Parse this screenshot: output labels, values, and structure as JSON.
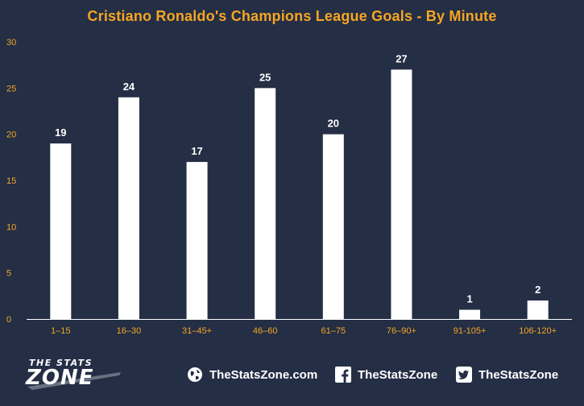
{
  "chart_data": {
    "type": "bar",
    "title": "Cristiano Ronaldo's Champions League Goals - By Minute",
    "categories": [
      "1–15",
      "16–30",
      "31–45+",
      "46–60",
      "61–75",
      "76–90+",
      "91-105+",
      "106-120+"
    ],
    "values": [
      19,
      24,
      17,
      25,
      20,
      27,
      1,
      2
    ],
    "ylim": [
      0,
      30
    ],
    "yticks": [
      0,
      5,
      10,
      15,
      20,
      25,
      30
    ],
    "grid": false,
    "bar_color": "#ffffff",
    "label_color": "#f5a623",
    "value_label_color": "#ffffff"
  },
  "footer": {
    "brand_top": "THE STATS",
    "brand_main": "ZONE",
    "website": "TheStatsZone.com",
    "facebook": "TheStatsZone",
    "twitter": "TheStatsZone"
  },
  "icons": {
    "website": "globe-icon",
    "facebook": "facebook-icon",
    "twitter": "twitter-icon"
  }
}
